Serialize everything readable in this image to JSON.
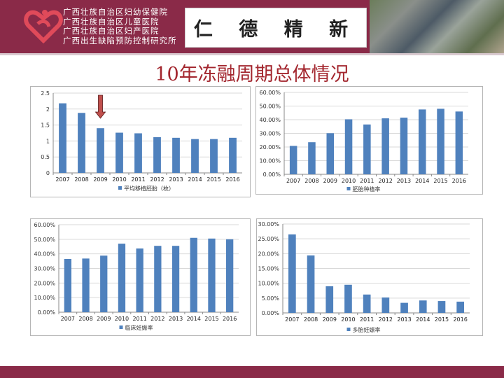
{
  "header": {
    "org_lines": [
      "广西壮族自治区妇幼保健院",
      "广西壮族自治区儿童医院",
      "广西壮族自治区妇产医院",
      "广西出生缺陷预防控制研究所"
    ],
    "motto": "仁 德 精 新"
  },
  "page_title": "10年冻融周期总体情况",
  "colors": {
    "brand": "#8a2a48",
    "bar": "#4f81bd",
    "title": "#a3262e",
    "arrow": "#c0504d"
  },
  "chart_data": [
    {
      "type": "bar",
      "title": "",
      "legend": "平均移植胚胎（枚）",
      "legend_position": "bottom",
      "categories": [
        "2007",
        "2008",
        "2009",
        "2010",
        "2011",
        "2012",
        "2013",
        "2014",
        "2015",
        "2016"
      ],
      "values": [
        2.18,
        1.88,
        1.4,
        1.26,
        1.24,
        1.12,
        1.1,
        1.06,
        1.06,
        1.1
      ],
      "ylim": [
        0,
        2.5
      ],
      "yticks": [
        "0",
        "0.5",
        "1",
        "1.5",
        "2",
        "2.5"
      ],
      "grid": true,
      "annotation": "down-arrow above 2009"
    },
    {
      "type": "bar",
      "title": "",
      "legend": "胚胎种植率",
      "legend_position": "bottom",
      "categories": [
        "2007",
        "2008",
        "2009",
        "2010",
        "2011",
        "2012",
        "2013",
        "2014",
        "2015",
        "2016"
      ],
      "values": [
        20.8,
        23.5,
        30.1,
        40.3,
        36.5,
        41.0,
        41.5,
        47.5,
        48.0,
        46.0
      ],
      "ylim": [
        0,
        60
      ],
      "yticks": [
        "0.00%",
        "10.00%",
        "20.00%",
        "30.00%",
        "40.00%",
        "50.00%",
        "60.00%"
      ],
      "grid": true
    },
    {
      "type": "bar",
      "title": "",
      "legend": "临床妊娠率",
      "legend_position": "bottom",
      "categories": [
        "2007",
        "2008",
        "2009",
        "2010",
        "2011",
        "2012",
        "2013",
        "2014",
        "2015",
        "2016"
      ],
      "values": [
        36.5,
        36.8,
        38.8,
        47.0,
        43.7,
        45.5,
        45.5,
        51.0,
        50.5,
        50.0
      ],
      "ylim": [
        0,
        60
      ],
      "yticks": [
        "0.00%",
        "10.00%",
        "20.00%",
        "30.00%",
        "40.00%",
        "50.00%",
        "60.00%"
      ],
      "grid": true
    },
    {
      "type": "bar",
      "title": "",
      "legend": "多胎妊娠率",
      "legend_position": "bottom",
      "categories": [
        "2007",
        "2008",
        "2009",
        "2010",
        "2011",
        "2012",
        "2013",
        "2014",
        "2015",
        "2016"
      ],
      "values": [
        26.5,
        19.4,
        9.0,
        9.5,
        6.2,
        5.2,
        3.4,
        4.2,
        4.0,
        3.8
      ],
      "ylim": [
        0,
        30
      ],
      "yticks": [
        "0.00%",
        "5.00%",
        "10.00%",
        "15.00%",
        "20.00%",
        "25.00%",
        "30.00%"
      ],
      "grid": true
    }
  ]
}
